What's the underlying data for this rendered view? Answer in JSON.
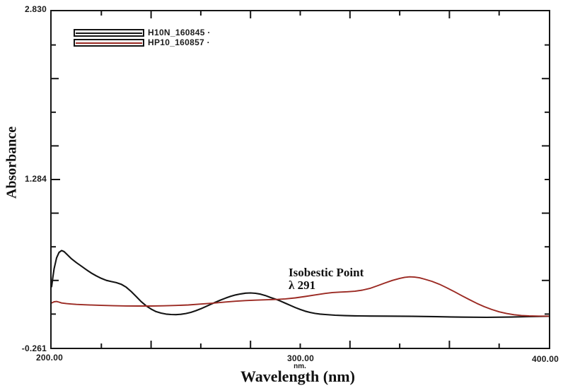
{
  "axes": {
    "x": {
      "title": "Wavelength (nm)",
      "unit_label": "nm.",
      "tick_labels": [
        "200.00",
        "300.00",
        "400.00"
      ]
    },
    "y": {
      "title": "Absorbance",
      "tick_labels": [
        "2.830",
        "1.284",
        "-0.261"
      ]
    }
  },
  "legend": {
    "items": [
      {
        "label": "H10N_160845 ·",
        "color": "#141414"
      },
      {
        "label": "HP10_160857 ·",
        "color": "#9b2a23"
      }
    ]
  },
  "annotation": {
    "line1": "Isobestic Point",
    "line2": "λ 291"
  },
  "colors": {
    "axis": "#151515",
    "black_series": "#141414",
    "red_series": "#9b2a23"
  },
  "chart_data": {
    "type": "line",
    "title": "",
    "xlabel": "Wavelength (nm)",
    "ylabel": "Absorbance",
    "xlim": [
      200,
      400
    ],
    "ylim": [
      -0.261,
      2.83
    ],
    "x_tick_labeled_values": [
      200,
      300,
      400
    ],
    "y_tick_labeled_values": [
      2.83,
      1.284,
      -0.261
    ],
    "x_minor_tick_step": 20,
    "y_minor_tick_divisions": 10,
    "grid": false,
    "legend_position": "top-left",
    "annotations": [
      {
        "text": "Isobestic Point",
        "x": 296,
        "y": 0.45
      },
      {
        "text": "λ 291",
        "x": 296,
        "y": 0.33
      }
    ],
    "isobestic_point_nm": 291,
    "series": [
      {
        "name": "H10N_160845",
        "color": "#141414",
        "points": [
          [
            200,
            0.3
          ],
          [
            200.5,
            0.39
          ],
          [
            201,
            0.465
          ],
          [
            202,
            0.565
          ],
          [
            203,
            0.615
          ],
          [
            204,
            0.632
          ],
          [
            205,
            0.622
          ],
          [
            206,
            0.6
          ],
          [
            208,
            0.556
          ],
          [
            210,
            0.52
          ],
          [
            212,
            0.488
          ],
          [
            214,
            0.455
          ],
          [
            216,
            0.425
          ],
          [
            218,
            0.399
          ],
          [
            220,
            0.376
          ],
          [
            222,
            0.358
          ],
          [
            224,
            0.347
          ],
          [
            226,
            0.337
          ],
          [
            228,
            0.322
          ],
          [
            230,
            0.295
          ],
          [
            232,
            0.255
          ],
          [
            234,
            0.21
          ],
          [
            236,
            0.163
          ],
          [
            238,
            0.124
          ],
          [
            240,
            0.094
          ],
          [
            242,
            0.071
          ],
          [
            244,
            0.057
          ],
          [
            246,
            0.048
          ],
          [
            248,
            0.044
          ],
          [
            250,
            0.043
          ],
          [
            252,
            0.046
          ],
          [
            254,
            0.053
          ],
          [
            256,
            0.064
          ],
          [
            258,
            0.079
          ],
          [
            260,
            0.097
          ],
          [
            262,
            0.117
          ],
          [
            264,
            0.138
          ],
          [
            266,
            0.158
          ],
          [
            268,
            0.177
          ],
          [
            270,
            0.195
          ],
          [
            272,
            0.211
          ],
          [
            274,
            0.224
          ],
          [
            276,
            0.233
          ],
          [
            278,
            0.24
          ],
          [
            280,
            0.242
          ],
          [
            282,
            0.239
          ],
          [
            284,
            0.231
          ],
          [
            286,
            0.218
          ],
          [
            288,
            0.201
          ],
          [
            290,
            0.186
          ],
          [
            292,
            0.168
          ],
          [
            294,
            0.148
          ],
          [
            296,
            0.128
          ],
          [
            298,
            0.108
          ],
          [
            300,
            0.09
          ],
          [
            302,
            0.075
          ],
          [
            304,
            0.063
          ],
          [
            306,
            0.054
          ],
          [
            308,
            0.048
          ],
          [
            310,
            0.044
          ],
          [
            314,
            0.038
          ],
          [
            318,
            0.034
          ],
          [
            322,
            0.032
          ],
          [
            328,
            0.03
          ],
          [
            335,
            0.029
          ],
          [
            345,
            0.027
          ],
          [
            355,
            0.024
          ],
          [
            365,
            0.02
          ],
          [
            375,
            0.018
          ],
          [
            385,
            0.021
          ],
          [
            392,
            0.025
          ],
          [
            400,
            0.028
          ]
        ]
      },
      {
        "name": "HP10_160857",
        "color": "#9b2a23",
        "points": [
          [
            200,
            0.15
          ],
          [
            201,
            0.161
          ],
          [
            202,
            0.164
          ],
          [
            203,
            0.158
          ],
          [
            204,
            0.15
          ],
          [
            206,
            0.144
          ],
          [
            208,
            0.14
          ],
          [
            210,
            0.137
          ],
          [
            213,
            0.134
          ],
          [
            216,
            0.131
          ],
          [
            220,
            0.128
          ],
          [
            225,
            0.125
          ],
          [
            230,
            0.123
          ],
          [
            235,
            0.122
          ],
          [
            240,
            0.122
          ],
          [
            245,
            0.124
          ],
          [
            250,
            0.127
          ],
          [
            255,
            0.132
          ],
          [
            260,
            0.14
          ],
          [
            265,
            0.149
          ],
          [
            270,
            0.159
          ],
          [
            274,
            0.166
          ],
          [
            278,
            0.172
          ],
          [
            282,
            0.176
          ],
          [
            286,
            0.179
          ],
          [
            291,
            0.183
          ],
          [
            294,
            0.188
          ],
          [
            298,
            0.197
          ],
          [
            302,
            0.21
          ],
          [
            306,
            0.224
          ],
          [
            310,
            0.238
          ],
          [
            313,
            0.246
          ],
          [
            316,
            0.25
          ],
          [
            319,
            0.253
          ],
          [
            322,
            0.258
          ],
          [
            325,
            0.268
          ],
          [
            328,
            0.284
          ],
          [
            331,
            0.308
          ],
          [
            334,
            0.333
          ],
          [
            337,
            0.357
          ],
          [
            340,
            0.376
          ],
          [
            342,
            0.386
          ],
          [
            344,
            0.39
          ],
          [
            346,
            0.388
          ],
          [
            348,
            0.381
          ],
          [
            350,
            0.369
          ],
          [
            353,
            0.349
          ],
          [
            356,
            0.322
          ],
          [
            359,
            0.289
          ],
          [
            362,
            0.254
          ],
          [
            365,
            0.217
          ],
          [
            368,
            0.181
          ],
          [
            371,
            0.147
          ],
          [
            374,
            0.116
          ],
          [
            377,
            0.09
          ],
          [
            380,
            0.069
          ],
          [
            383,
            0.053
          ],
          [
            386,
            0.042
          ],
          [
            389,
            0.035
          ],
          [
            392,
            0.031
          ],
          [
            396,
            0.029
          ],
          [
            400,
            0.029
          ]
        ]
      }
    ]
  }
}
